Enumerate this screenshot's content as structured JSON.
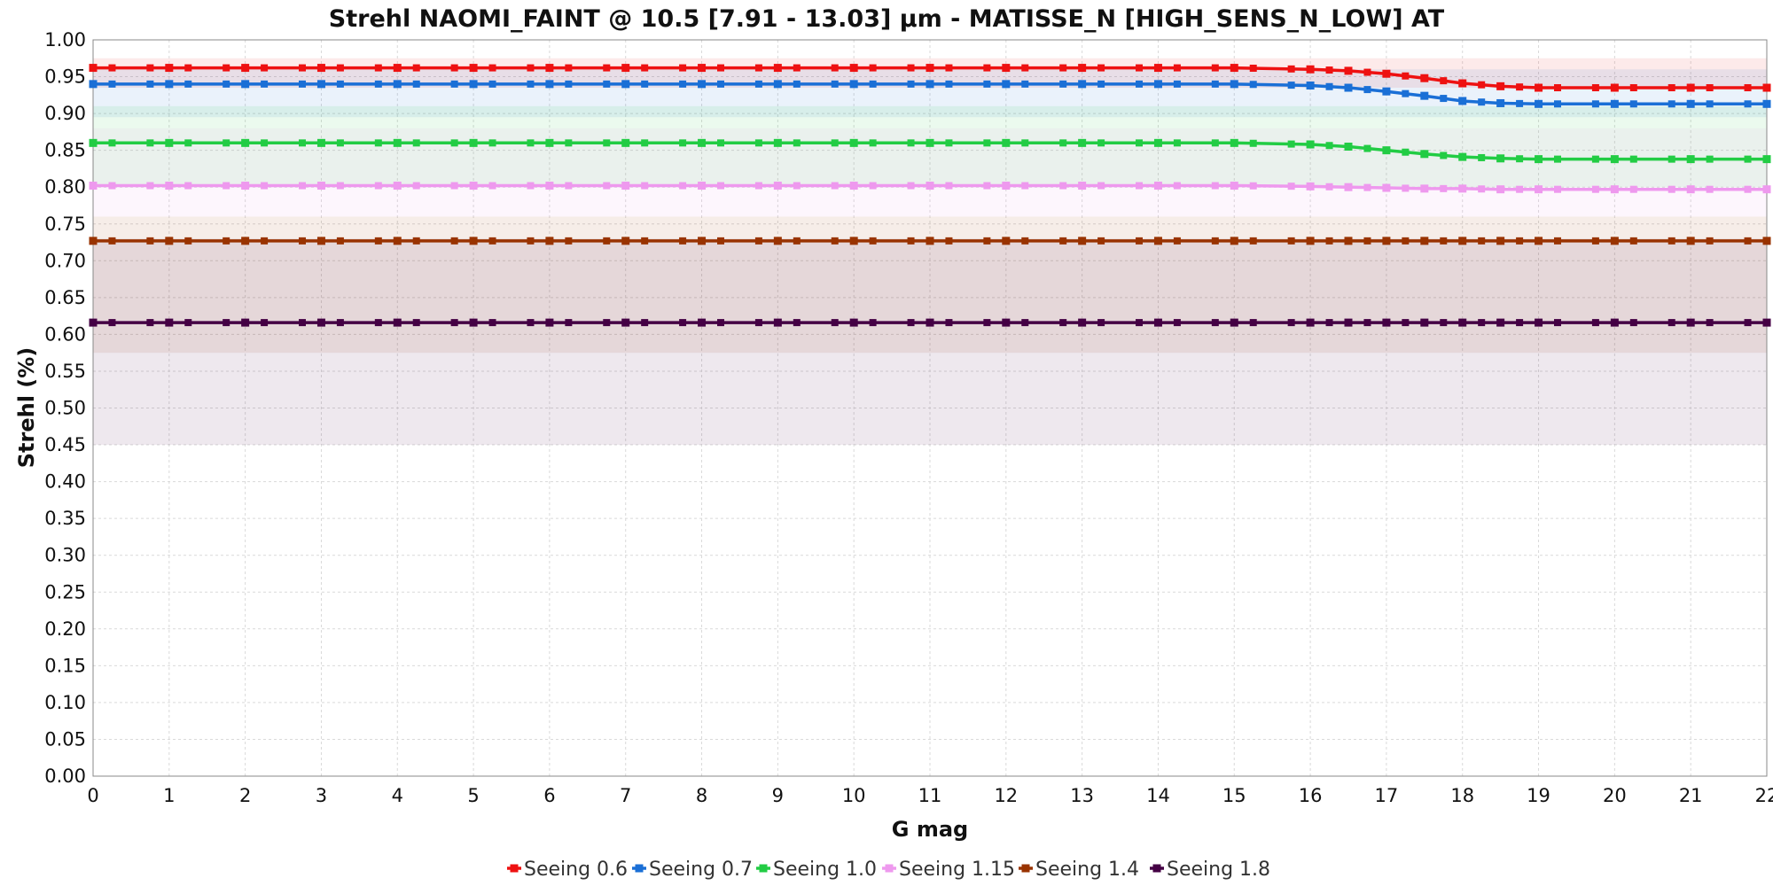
{
  "chart_data": {
    "type": "line",
    "title": "Strehl NAOMI_FAINT @ 10.5 [7.91 - 13.03] μm - MATISSE_N [HIGH_SENS_N_LOW] AT",
    "xlabel": "G mag",
    "ylabel": "Strehl (%)",
    "xlim": [
      0,
      22
    ],
    "ylim": [
      0,
      1
    ],
    "x_ticks": [
      "0",
      "1",
      "2",
      "3",
      "4",
      "5",
      "6",
      "7",
      "8",
      "9",
      "10",
      "11",
      "12",
      "13",
      "14",
      "15",
      "16",
      "17",
      "18",
      "19",
      "20",
      "21",
      "22"
    ],
    "y_ticks": [
      "0.00",
      "0.05",
      "0.10",
      "0.15",
      "0.20",
      "0.25",
      "0.30",
      "0.35",
      "0.40",
      "0.45",
      "0.50",
      "0.55",
      "0.60",
      "0.65",
      "0.70",
      "0.75",
      "0.80",
      "0.85",
      "0.90",
      "0.95",
      "1.00"
    ],
    "grid": true,
    "legend_position": "bottom",
    "x": [
      0,
      1,
      2,
      3,
      4,
      5,
      6,
      7,
      8,
      9,
      10,
      11,
      12,
      13,
      14,
      15,
      16,
      16.5,
      17,
      17.5,
      18,
      18.5,
      19,
      20,
      21,
      22
    ],
    "series": [
      {
        "name": "Seeing 0.6",
        "color": "#ee1111",
        "values": [
          0.962,
          0.962,
          0.962,
          0.962,
          0.962,
          0.962,
          0.962,
          0.962,
          0.962,
          0.962,
          0.962,
          0.962,
          0.962,
          0.962,
          0.962,
          0.962,
          0.96,
          0.958,
          0.954,
          0.948,
          0.941,
          0.937,
          0.935,
          0.935,
          0.935,
          0.935
        ],
        "band": [
          0.935,
          0.975
        ]
      },
      {
        "name": "Seeing 0.7",
        "color": "#1a6fd6",
        "values": [
          0.94,
          0.94,
          0.94,
          0.94,
          0.94,
          0.94,
          0.94,
          0.94,
          0.94,
          0.94,
          0.94,
          0.94,
          0.94,
          0.94,
          0.94,
          0.94,
          0.938,
          0.935,
          0.93,
          0.924,
          0.917,
          0.914,
          0.913,
          0.913,
          0.913,
          0.913
        ],
        "band": [
          0.895,
          0.96
        ]
      },
      {
        "name": "Seeing 1.0",
        "color": "#22cc44",
        "values": [
          0.86,
          0.86,
          0.86,
          0.86,
          0.86,
          0.86,
          0.86,
          0.86,
          0.86,
          0.86,
          0.86,
          0.86,
          0.86,
          0.86,
          0.86,
          0.86,
          0.858,
          0.855,
          0.85,
          0.845,
          0.841,
          0.839,
          0.838,
          0.838,
          0.838,
          0.838
        ],
        "band": [
          0.8,
          0.91
        ]
      },
      {
        "name": "Seeing 1.15",
        "color": "#ee99ee",
        "values": [
          0.802,
          0.802,
          0.802,
          0.802,
          0.802,
          0.802,
          0.802,
          0.802,
          0.802,
          0.802,
          0.802,
          0.802,
          0.802,
          0.802,
          0.802,
          0.802,
          0.801,
          0.8,
          0.799,
          0.798,
          0.798,
          0.797,
          0.797,
          0.797,
          0.797,
          0.797
        ],
        "band": [
          0.76,
          0.88
        ]
      },
      {
        "name": "Seeing 1.4",
        "color": "#993300",
        "values": [
          0.727,
          0.727,
          0.727,
          0.727,
          0.727,
          0.727,
          0.727,
          0.727,
          0.727,
          0.727,
          0.727,
          0.727,
          0.727,
          0.727,
          0.727,
          0.727,
          0.727,
          0.727,
          0.727,
          0.727,
          0.727,
          0.727,
          0.727,
          0.727,
          0.727,
          0.727
        ],
        "band": [
          0.575,
          0.76
        ]
      },
      {
        "name": "Seeing 1.8",
        "color": "#440044",
        "values": [
          0.616,
          0.616,
          0.616,
          0.616,
          0.616,
          0.616,
          0.616,
          0.616,
          0.616,
          0.616,
          0.616,
          0.616,
          0.616,
          0.616,
          0.616,
          0.616,
          0.616,
          0.616,
          0.616,
          0.616,
          0.616,
          0.616,
          0.616,
          0.616,
          0.616,
          0.616
        ],
        "band": [
          0.45,
          0.73
        ]
      }
    ]
  }
}
